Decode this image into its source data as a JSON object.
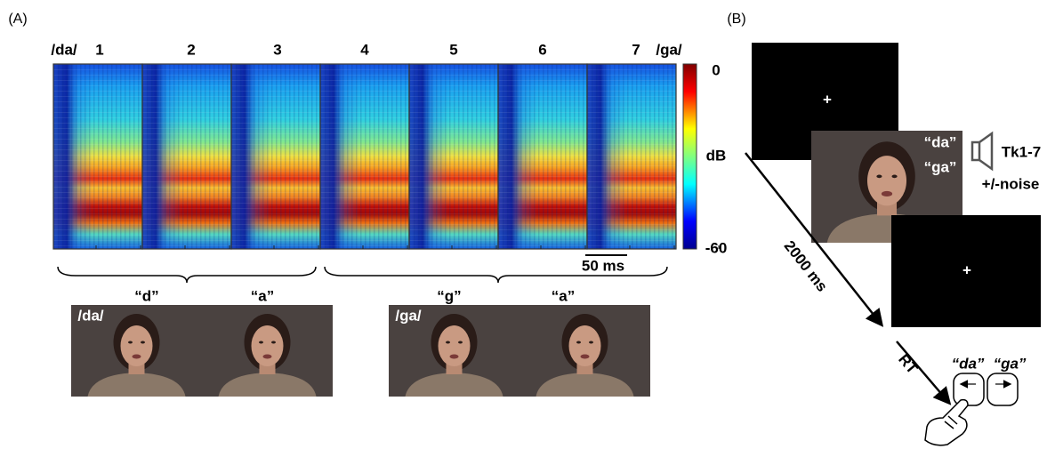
{
  "panel_a": {
    "label": "(A)",
    "continuum": {
      "start_label": "/da/",
      "end_label": "/ga/",
      "steps": [
        "1",
        "2",
        "3",
        "4",
        "5",
        "6",
        "7"
      ]
    },
    "colorbar": {
      "max": "0",
      "unit": "dB",
      "min": "-60"
    },
    "scale_bar": "50 ms",
    "videos": [
      {
        "label": "/da/",
        "phonemes": [
          "“d”",
          "“a”"
        ]
      },
      {
        "label": "/ga/",
        "phonemes": [
          "“g”",
          "“a”"
        ]
      }
    ]
  },
  "panel_b": {
    "label": "(B)",
    "fixation": "+",
    "syllables": [
      "“da”",
      "“ga”"
    ],
    "token": "Tk1-7",
    "noise": "+/-noise",
    "duration": "2000 ms",
    "rt": "RT",
    "responses": [
      "“da”",
      "“ga”"
    ]
  }
}
